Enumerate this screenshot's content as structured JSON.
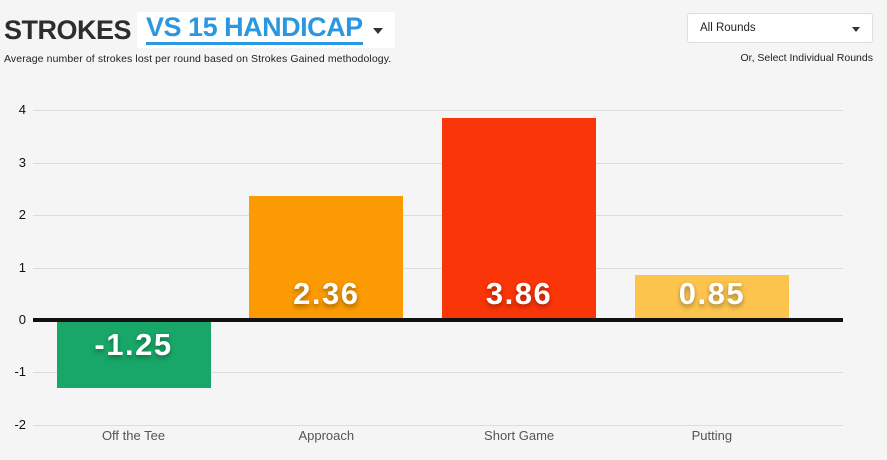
{
  "header": {
    "title_prefix": "STROKES",
    "comparison_label": "VS 15 HANDICAP",
    "subtitle": "Average number of strokes lost per round based on Strokes Gained methodology."
  },
  "filters": {
    "rounds_selected": "All Rounds",
    "individual_rounds_hint": "Or, Select Individual Rounds"
  },
  "colors": {
    "background": "#f5f5f6",
    "accent_blue": "#2b97e0",
    "title_dark": "#2d2d2d",
    "gridline": "#dcdcdc",
    "zero_line": "#111111",
    "bar_label_text": "#ffffff"
  },
  "chart_data": {
    "type": "bar",
    "title": "STROKES VS 15 HANDICAP",
    "subtitle": "Average number of strokes lost per round based on Strokes Gained methodology",
    "categories": [
      "Off the Tee",
      "Approach",
      "Short Game",
      "Putting"
    ],
    "values": [
      -1.25,
      2.36,
      3.86,
      0.85
    ],
    "value_labels": [
      "-1.25",
      "2.36",
      "3.86",
      "0.85"
    ],
    "bar_colors": [
      "#18a768",
      "#fb9a02",
      "#fa3508",
      "#fcc44d"
    ],
    "xlabel": "",
    "ylabel": "",
    "ylim": [
      -2,
      4
    ],
    "yticks": [
      4,
      3,
      2,
      1,
      0,
      -1,
      -2
    ],
    "grid": true,
    "zero_line": true,
    "legend": "none"
  }
}
